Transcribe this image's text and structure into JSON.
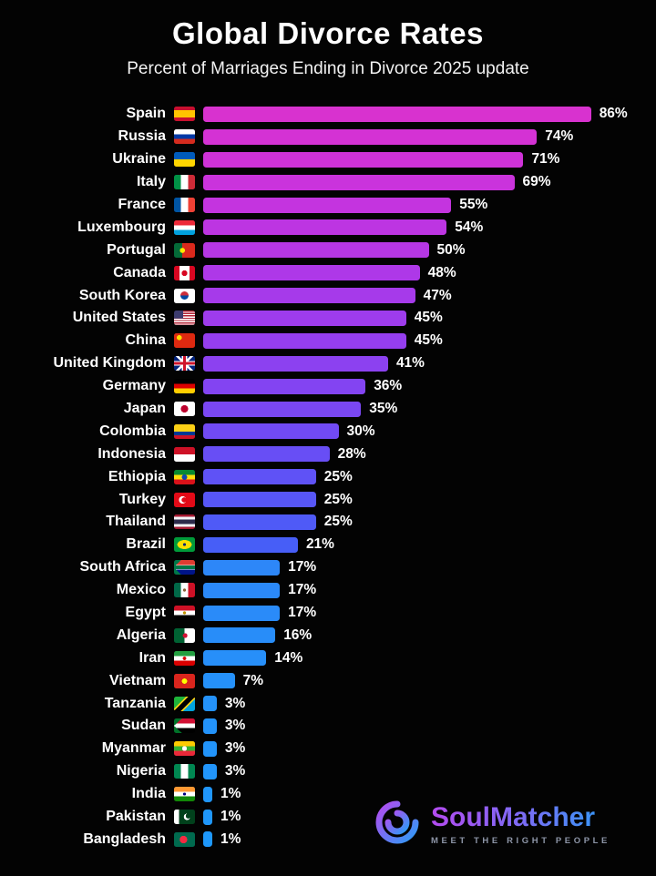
{
  "page": {
    "background": "#030303",
    "text_color": "#ffffff"
  },
  "chart_data": {
    "type": "bar",
    "orientation": "horizontal",
    "title": "Global Divorce Rates",
    "subtitle": "Percent of Marriages Ending in Divorce 2025 update",
    "xlabel": "",
    "ylabel": "",
    "xlim": [
      0,
      100
    ],
    "value_suffix": "%",
    "grid": false,
    "legend": "none",
    "categories": [
      "Spain",
      "Russia",
      "Ukraine",
      "Italy",
      "France",
      "Luxembourg",
      "Portugal",
      "Canada",
      "South Korea",
      "United States",
      "China",
      "United Kingdom",
      "Germany",
      "Japan",
      "Colombia",
      "Indonesia",
      "Ethiopia",
      "Turkey",
      "Thailand",
      "Brazil",
      "South Africa",
      "Mexico",
      "Egypt",
      "Algeria",
      "Iran",
      "Vietnam",
      "Tanzania",
      "Sudan",
      "Myanmar",
      "Nigeria",
      "India",
      "Pakistan",
      "Bangladesh"
    ],
    "values": [
      86,
      74,
      71,
      69,
      55,
      54,
      50,
      48,
      47,
      45,
      45,
      41,
      36,
      35,
      30,
      28,
      25,
      25,
      25,
      21,
      17,
      17,
      17,
      16,
      14,
      7,
      3,
      3,
      3,
      3,
      1,
      1,
      1
    ],
    "flags": [
      "es",
      "ru",
      "ua",
      "it",
      "fr",
      "lu",
      "pt",
      "ca",
      "kr",
      "us",
      "cn",
      "gb",
      "de",
      "jp",
      "co",
      "id",
      "et",
      "tr",
      "th",
      "br",
      "za",
      "mx",
      "eg",
      "dz",
      "ir",
      "vn",
      "tz",
      "sd",
      "mm",
      "ng",
      "in",
      "pk",
      "bd"
    ],
    "bar_colors": [
      "#d832cf",
      "#d432d4",
      "#cf32d8",
      "#ca33dc",
      "#c434df",
      "#bd35e2",
      "#b637e5",
      "#ae38e8",
      "#a63aea",
      "#9e3cec",
      "#953eee",
      "#8c41f0",
      "#8344f2",
      "#7a47f3",
      "#714af4",
      "#684ef5",
      "#5f52f6",
      "#5756f6",
      "#4f5af7",
      "#475ef7",
      "#2d87f8",
      "#2b89f8",
      "#2a8bf9",
      "#288df9",
      "#278ff9",
      "#2591fa",
      "#2492fa",
      "#2393fa",
      "#2294fa",
      "#2195fb",
      "#2096fb",
      "#1f97fb",
      "#1e98fb"
    ]
  },
  "brand": {
    "name": "SoulMatcher",
    "tagline": "MEET THE RIGHT PEOPLE",
    "gradient": [
      "#b44bf0",
      "#2e9bf7"
    ]
  }
}
